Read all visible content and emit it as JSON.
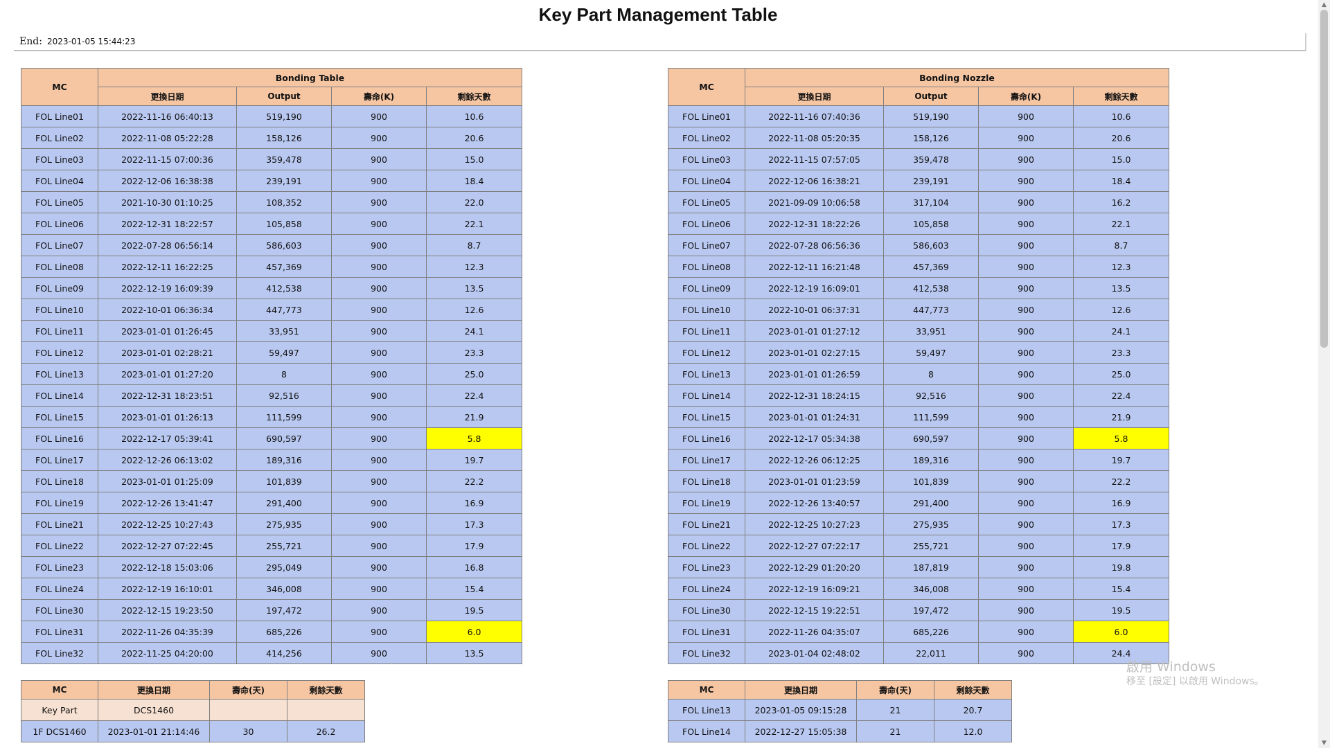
{
  "page": {
    "title": "Key Part Management Table",
    "end_label": "End:",
    "end_value": "2023-01-05 15:44:23"
  },
  "columns": {
    "mc": "MC",
    "change_date": "更換日期",
    "output": "Output",
    "life_k": "壽命(K)",
    "life_days": "壽命(天)",
    "remaining_days": "剩餘天數"
  },
  "bonding_table": {
    "title": "Bonding Table",
    "rows": [
      {
        "mc": "FOL Line01",
        "date": "2022-11-16 06:40:13",
        "output": "519,190",
        "life": "900",
        "remain": "10.6",
        "highlight": false
      },
      {
        "mc": "FOL Line02",
        "date": "2022-11-08 05:22:28",
        "output": "158,126",
        "life": "900",
        "remain": "20.6",
        "highlight": false
      },
      {
        "mc": "FOL Line03",
        "date": "2022-11-15 07:00:36",
        "output": "359,478",
        "life": "900",
        "remain": "15.0",
        "highlight": false
      },
      {
        "mc": "FOL Line04",
        "date": "2022-12-06 16:38:38",
        "output": "239,191",
        "life": "900",
        "remain": "18.4",
        "highlight": false
      },
      {
        "mc": "FOL Line05",
        "date": "2021-10-30 01:10:25",
        "output": "108,352",
        "life": "900",
        "remain": "22.0",
        "highlight": false
      },
      {
        "mc": "FOL Line06",
        "date": "2022-12-31 18:22:57",
        "output": "105,858",
        "life": "900",
        "remain": "22.1",
        "highlight": false
      },
      {
        "mc": "FOL Line07",
        "date": "2022-07-28 06:56:14",
        "output": "586,603",
        "life": "900",
        "remain": "8.7",
        "highlight": false
      },
      {
        "mc": "FOL Line08",
        "date": "2022-12-11 16:22:25",
        "output": "457,369",
        "life": "900",
        "remain": "12.3",
        "highlight": false
      },
      {
        "mc": "FOL Line09",
        "date": "2022-12-19 16:09:39",
        "output": "412,538",
        "life": "900",
        "remain": "13.5",
        "highlight": false
      },
      {
        "mc": "FOL Line10",
        "date": "2022-10-01 06:36:34",
        "output": "447,773",
        "life": "900",
        "remain": "12.6",
        "highlight": false
      },
      {
        "mc": "FOL Line11",
        "date": "2023-01-01 01:26:45",
        "output": "33,951",
        "life": "900",
        "remain": "24.1",
        "highlight": false
      },
      {
        "mc": "FOL Line12",
        "date": "2023-01-01 02:28:21",
        "output": "59,497",
        "life": "900",
        "remain": "23.3",
        "highlight": false
      },
      {
        "mc": "FOL Line13",
        "date": "2023-01-01 01:27:20",
        "output": "8",
        "life": "900",
        "remain": "25.0",
        "highlight": false
      },
      {
        "mc": "FOL Line14",
        "date": "2022-12-31 18:23:51",
        "output": "92,516",
        "life": "900",
        "remain": "22.4",
        "highlight": false
      },
      {
        "mc": "FOL Line15",
        "date": "2023-01-01 01:26:13",
        "output": "111,599",
        "life": "900",
        "remain": "21.9",
        "highlight": false
      },
      {
        "mc": "FOL Line16",
        "date": "2022-12-17 05:39:41",
        "output": "690,597",
        "life": "900",
        "remain": "5.8",
        "highlight": true
      },
      {
        "mc": "FOL Line17",
        "date": "2022-12-26 06:13:02",
        "output": "189,316",
        "life": "900",
        "remain": "19.7",
        "highlight": false
      },
      {
        "mc": "FOL Line18",
        "date": "2023-01-01 01:25:09",
        "output": "101,839",
        "life": "900",
        "remain": "22.2",
        "highlight": false
      },
      {
        "mc": "FOL Line19",
        "date": "2022-12-26 13:41:47",
        "output": "291,400",
        "life": "900",
        "remain": "16.9",
        "highlight": false
      },
      {
        "mc": "FOL Line21",
        "date": "2022-12-25 10:27:43",
        "output": "275,935",
        "life": "900",
        "remain": "17.3",
        "highlight": false
      },
      {
        "mc": "FOL Line22",
        "date": "2022-12-27 07:22:45",
        "output": "255,721",
        "life": "900",
        "remain": "17.9",
        "highlight": false
      },
      {
        "mc": "FOL Line23",
        "date": "2022-12-18 15:03:06",
        "output": "295,049",
        "life": "900",
        "remain": "16.8",
        "highlight": false
      },
      {
        "mc": "FOL Line24",
        "date": "2022-12-19 16:10:01",
        "output": "346,008",
        "life": "900",
        "remain": "15.4",
        "highlight": false
      },
      {
        "mc": "FOL Line30",
        "date": "2022-12-15 19:23:50",
        "output": "197,472",
        "life": "900",
        "remain": "19.5",
        "highlight": false
      },
      {
        "mc": "FOL Line31",
        "date": "2022-11-26 04:35:39",
        "output": "685,226",
        "life": "900",
        "remain": "6.0",
        "highlight": true
      },
      {
        "mc": "FOL Line32",
        "date": "2022-11-25 04:20:00",
        "output": "414,256",
        "life": "900",
        "remain": "13.5",
        "highlight": false
      }
    ]
  },
  "bonding_nozzle": {
    "title": "Bonding Nozzle",
    "rows": [
      {
        "mc": "FOL Line01",
        "date": "2022-11-16 07:40:36",
        "output": "519,190",
        "life": "900",
        "remain": "10.6",
        "highlight": false
      },
      {
        "mc": "FOL Line02",
        "date": "2022-11-08 05:20:35",
        "output": "158,126",
        "life": "900",
        "remain": "20.6",
        "highlight": false
      },
      {
        "mc": "FOL Line03",
        "date": "2022-11-15 07:57:05",
        "output": "359,478",
        "life": "900",
        "remain": "15.0",
        "highlight": false
      },
      {
        "mc": "FOL Line04",
        "date": "2022-12-06 16:38:21",
        "output": "239,191",
        "life": "900",
        "remain": "18.4",
        "highlight": false
      },
      {
        "mc": "FOL Line05",
        "date": "2021-09-09 10:06:58",
        "output": "317,104",
        "life": "900",
        "remain": "16.2",
        "highlight": false
      },
      {
        "mc": "FOL Line06",
        "date": "2022-12-31 18:22:26",
        "output": "105,858",
        "life": "900",
        "remain": "22.1",
        "highlight": false
      },
      {
        "mc": "FOL Line07",
        "date": "2022-07-28 06:56:36",
        "output": "586,603",
        "life": "900",
        "remain": "8.7",
        "highlight": false
      },
      {
        "mc": "FOL Line08",
        "date": "2022-12-11 16:21:48",
        "output": "457,369",
        "life": "900",
        "remain": "12.3",
        "highlight": false
      },
      {
        "mc": "FOL Line09",
        "date": "2022-12-19 16:09:01",
        "output": "412,538",
        "life": "900",
        "remain": "13.5",
        "highlight": false
      },
      {
        "mc": "FOL Line10",
        "date": "2022-10-01 06:37:31",
        "output": "447,773",
        "life": "900",
        "remain": "12.6",
        "highlight": false
      },
      {
        "mc": "FOL Line11",
        "date": "2023-01-01 01:27:12",
        "output": "33,951",
        "life": "900",
        "remain": "24.1",
        "highlight": false
      },
      {
        "mc": "FOL Line12",
        "date": "2023-01-01 02:27:15",
        "output": "59,497",
        "life": "900",
        "remain": "23.3",
        "highlight": false
      },
      {
        "mc": "FOL Line13",
        "date": "2023-01-01 01:26:59",
        "output": "8",
        "life": "900",
        "remain": "25.0",
        "highlight": false
      },
      {
        "mc": "FOL Line14",
        "date": "2022-12-31 18:24:15",
        "output": "92,516",
        "life": "900",
        "remain": "22.4",
        "highlight": false
      },
      {
        "mc": "FOL Line15",
        "date": "2023-01-01 01:24:31",
        "output": "111,599",
        "life": "900",
        "remain": "21.9",
        "highlight": false
      },
      {
        "mc": "FOL Line16",
        "date": "2022-12-17 05:34:38",
        "output": "690,597",
        "life": "900",
        "remain": "5.8",
        "highlight": true
      },
      {
        "mc": "FOL Line17",
        "date": "2022-12-26 06:12:25",
        "output": "189,316",
        "life": "900",
        "remain": "19.7",
        "highlight": false
      },
      {
        "mc": "FOL Line18",
        "date": "2023-01-01 01:23:59",
        "output": "101,839",
        "life": "900",
        "remain": "22.2",
        "highlight": false
      },
      {
        "mc": "FOL Line19",
        "date": "2022-12-26 13:40:57",
        "output": "291,400",
        "life": "900",
        "remain": "16.9",
        "highlight": false
      },
      {
        "mc": "FOL Line21",
        "date": "2022-12-25 10:27:23",
        "output": "275,935",
        "life": "900",
        "remain": "17.3",
        "highlight": false
      },
      {
        "mc": "FOL Line22",
        "date": "2022-12-27 07:22:17",
        "output": "255,721",
        "life": "900",
        "remain": "17.9",
        "highlight": false
      },
      {
        "mc": "FOL Line23",
        "date": "2022-12-29 01:20:20",
        "output": "187,819",
        "life": "900",
        "remain": "19.8",
        "highlight": false
      },
      {
        "mc": "FOL Line24",
        "date": "2022-12-19 16:09:21",
        "output": "346,008",
        "life": "900",
        "remain": "15.4",
        "highlight": false
      },
      {
        "mc": "FOL Line30",
        "date": "2022-12-15 19:22:51",
        "output": "197,472",
        "life": "900",
        "remain": "19.5",
        "highlight": false
      },
      {
        "mc": "FOL Line31",
        "date": "2022-11-26 04:35:07",
        "output": "685,226",
        "life": "900",
        "remain": "6.0",
        "highlight": true
      },
      {
        "mc": "FOL Line32",
        "date": "2023-01-04 02:48:02",
        "output": "22,011",
        "life": "900",
        "remain": "24.4",
        "highlight": false
      }
    ]
  },
  "lower_left": {
    "key_part_row": {
      "mc": "Key Part",
      "date": "DCS1460",
      "life": "",
      "remain": ""
    },
    "rows": [
      {
        "mc": "1F DCS1460",
        "date": "2023-01-01 21:14:46",
        "life": "30",
        "remain": "26.2"
      }
    ]
  },
  "lower_right": {
    "rows": [
      {
        "mc": "FOL Line13",
        "date": "2023-01-05 09:15:28",
        "life": "21",
        "remain": "20.7"
      },
      {
        "mc": "FOL Line14",
        "date": "2022-12-27 15:05:38",
        "life": "21",
        "remain": "12.0"
      }
    ]
  },
  "watermark": {
    "line1": "啟用 Windows",
    "line2": "移至 [設定] 以啟用 Windows。"
  },
  "colors": {
    "header": "#f6c6a3",
    "row": "#b9c8f0",
    "highlight": "#ffff00",
    "key_part_row": "#f7e1d2"
  }
}
